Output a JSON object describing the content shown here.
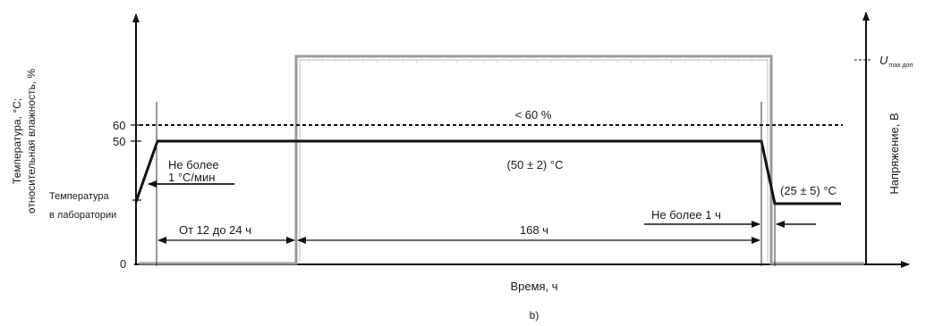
{
  "diagram": {
    "y_axis_left_label_line1": "Температура, °С;",
    "y_axis_left_label_line2": "относительная влажность, %",
    "y_axis_right_label": "Напряжение, В",
    "x_axis_label": "Время, ч",
    "caption": "b)",
    "tick_60": "60",
    "tick_50": "50",
    "tick_0": "0",
    "lab_temp_line1": "Температура",
    "lab_temp_line2": "в лаборатории",
    "u_symbol": "U",
    "u_subscript": "max доп",
    "humidity_label": "< 60 %",
    "plateau_temp_label": "(50 ± 2) °С",
    "ramp_line1": "Не более",
    "ramp_line2": "1 °С/мин",
    "final_temp_label": "(25 ± 5) °С",
    "duration_1_label": "От 12 до 24 ч",
    "duration_2_label": "168 ч",
    "duration_3_label": "Не более 1 ч"
  }
}
